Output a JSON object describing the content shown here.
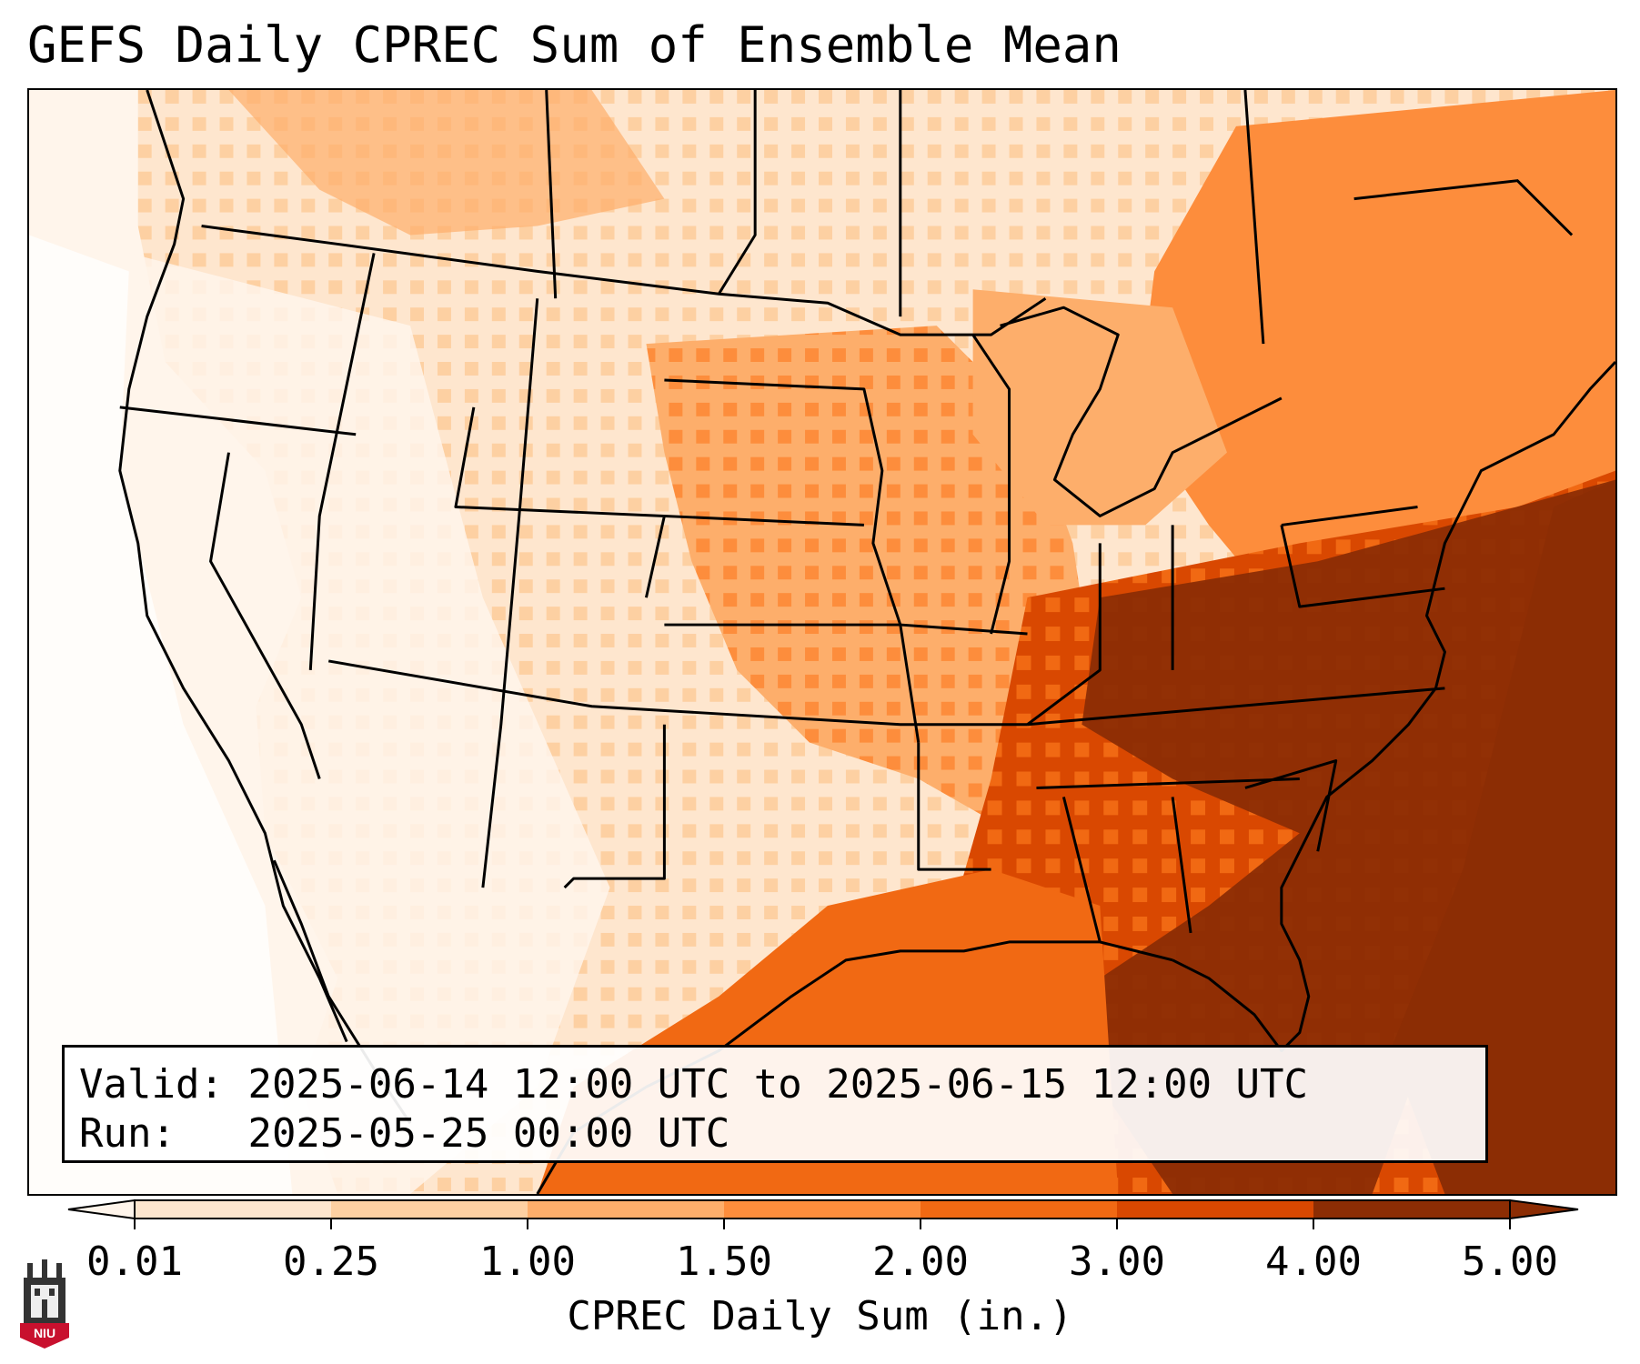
{
  "title": "GEFS Daily CPREC Sum of Ensemble Mean",
  "info": {
    "valid_label": "Valid:",
    "valid_value": "2025-06-14 12:00 UTC to 2025-06-15 12:00 UTC",
    "run_label": "Run:",
    "run_value": "2025-05-25 00:00 UTC"
  },
  "colorbar": {
    "label": "CPREC Daily Sum (in.)",
    "ticks": [
      "0.01",
      "0.25",
      "1.00",
      "1.50",
      "2.00",
      "3.00",
      "4.00",
      "5.00"
    ],
    "colors": [
      "#fff5eb",
      "#fee6ce",
      "#fdd0a2",
      "#fdae6b",
      "#fd8d3c",
      "#f16913",
      "#d94801",
      "#8c2d04"
    ]
  },
  "logo": {
    "text": "NIU",
    "color": "#c8102e"
  }
}
